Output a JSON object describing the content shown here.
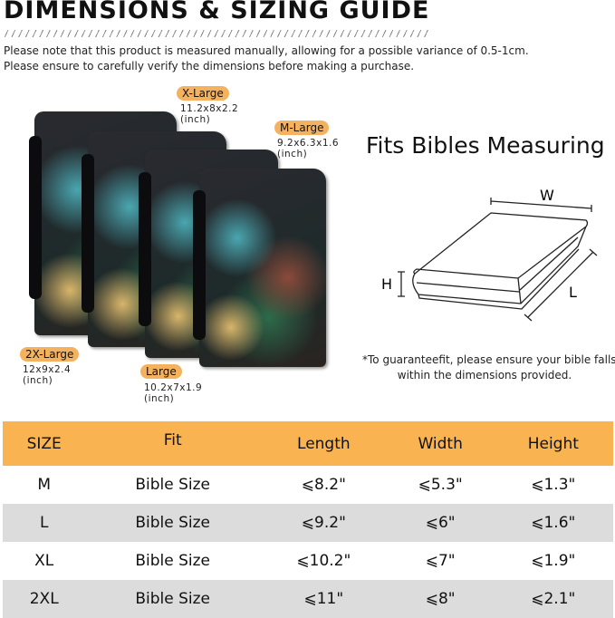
{
  "header": {
    "title": "DIMENSIONS & SIZING GUIDE",
    "notes": [
      "Please note that this product is measured manually, allowing for a possible variance of 0.5-1cm.",
      "Please ensure to carefully verify the dimensions before making a purchase."
    ]
  },
  "sizes": [
    {
      "label": "X-Large",
      "dims": "11.2x8x2.2",
      "unit": "(inch)"
    },
    {
      "label": "M-Large",
      "dims": "9.2x6.3x1.6",
      "unit": "(inch)"
    },
    {
      "label": "2X-Large",
      "dims": "12x9x2.4",
      "unit": "(inch)"
    },
    {
      "label": "Large",
      "dims": "10.2x7x1.9",
      "unit": "(inch)"
    }
  ],
  "diagram": {
    "title": "Fits Bibles Measuring",
    "labels": {
      "w": "W",
      "h": "H",
      "l": "L"
    },
    "note_lines": [
      "*To guaranteefit, please ensure your bible falls",
      "within the dimensions provided."
    ]
  },
  "table": {
    "headers": [
      "SIZE",
      "Fit",
      "Length",
      "Width",
      "Height"
    ],
    "rows": [
      [
        "M",
        "Bible Size",
        "⩽8.2\"",
        "⩽5.3\"",
        "⩽1.3\""
      ],
      [
        "L",
        "Bible Size",
        "⩽9.2\"",
        "⩽6\"",
        "⩽1.6\""
      ],
      [
        "XL",
        "Bible Size",
        "⩽10.2\"",
        "⩽7\"",
        "⩽1.9\""
      ],
      [
        "2XL",
        "Bible Size",
        "⩽11\"",
        "⩽8\"",
        "⩽2.1\""
      ]
    ]
  },
  "colors": {
    "accent": "#f9b451",
    "row_alt": "#dcdcdc"
  }
}
